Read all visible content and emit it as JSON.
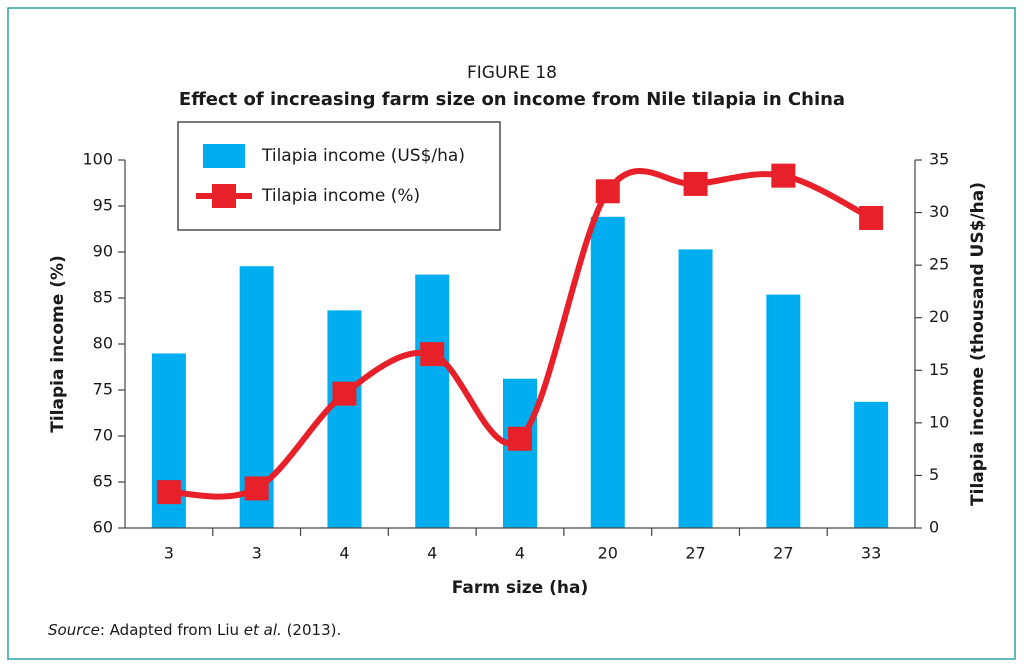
{
  "chart_data": {
    "type": "bar+line",
    "title": "FIGURE 18",
    "subtitle": "Effect of increasing farm size on income from Nile tilapia in China",
    "x_label": "Farm size (ha)",
    "y_label": "Tilapia income (%)",
    "y2_label": "Tilapia income (thousand US$/ha)",
    "categories": [
      "3",
      "3",
      "4",
      "4",
      "4",
      "20",
      "27",
      "27",
      "33"
    ],
    "series": [
      {
        "name": "Tilapia income (US$/ha)",
        "type": "bar",
        "axis": "y2",
        "color": "#00aeef",
        "values": [
          16.6,
          24.9,
          20.7,
          24.1,
          14.2,
          29.6,
          26.5,
          22.2,
          12.0
        ]
      },
      {
        "name": "Tilapia income (%)",
        "type": "line",
        "axis": "y",
        "color": "#e8202a",
        "values": [
          63.9,
          64.3,
          74.6,
          78.9,
          69.7,
          96.6,
          97.4,
          98.3,
          93.7
        ]
      }
    ],
    "ylim": [
      60,
      100
    ],
    "yticks": [
      60,
      65,
      70,
      75,
      80,
      85,
      90,
      95,
      100
    ],
    "y2lim": [
      0,
      35
    ],
    "y2ticks": [
      0,
      5,
      10,
      15,
      20,
      25,
      30,
      35
    ],
    "legend": "top-left",
    "source": [
      "Source",
      ": Adapted from Liu ",
      "et al.",
      " (2013)."
    ]
  }
}
